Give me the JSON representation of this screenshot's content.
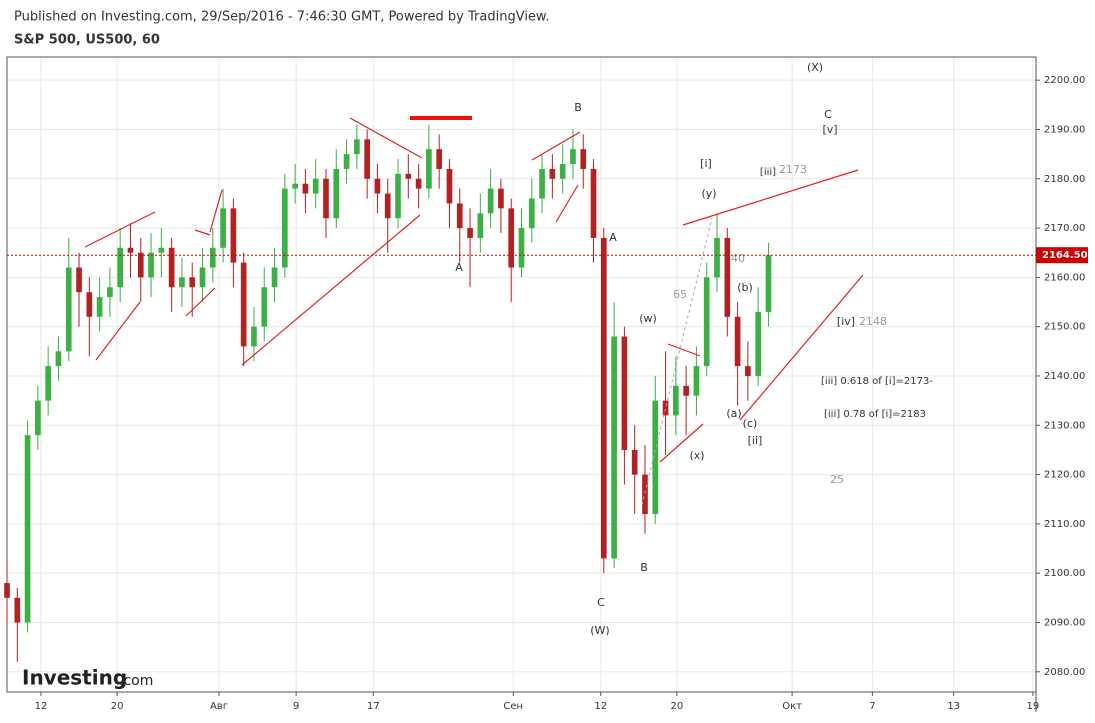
{
  "header": {
    "published": "Published on Investing.com, 29/Sep/2016 - 7:46:30 GMT, Powered by TradingView.",
    "symbol": "S&P 500, US500, 60"
  },
  "logo": {
    "brand": "Investing",
    "suffix": ".com"
  },
  "chart_data": {
    "type": "candlestick",
    "x": [
      0,
      1,
      2,
      3,
      4,
      5,
      6,
      7,
      8,
      9,
      10,
      11,
      12,
      13,
      14,
      15,
      16,
      17,
      18,
      19,
      20,
      21,
      22,
      23,
      24,
      25,
      26,
      27,
      28,
      29,
      30,
      31,
      32,
      33,
      34,
      35,
      36,
      37,
      38,
      39,
      40,
      41,
      42,
      43,
      44,
      45,
      46,
      47,
      48,
      49,
      50,
      51,
      52,
      53,
      54,
      55,
      56,
      57,
      58,
      59,
      60,
      61,
      62,
      63,
      64,
      65,
      66,
      67,
      68,
      69,
      70,
      71,
      72,
      73,
      74
    ],
    "open": [
      2098,
      2095,
      2090,
      2128,
      2135,
      2142,
      2145,
      2162,
      2157,
      2152,
      2156,
      2158,
      2166,
      2165,
      2160,
      2165,
      2166,
      2158,
      2160,
      2158,
      2162,
      2166,
      2174,
      2163,
      2146,
      2150,
      2158,
      2162,
      2178,
      2179,
      2177,
      2180,
      2172,
      2182,
      2185,
      2188,
      2180,
      2177,
      2172,
      2181,
      2180,
      2178,
      2186,
      2182,
      2175,
      2170,
      2168,
      2173,
      2178,
      2174,
      2162,
      2170,
      2176,
      2182,
      2180,
      2183,
      2186,
      2182,
      2168,
      2103,
      2148,
      2125,
      2120,
      2112,
      2135,
      2132,
      2138,
      2136,
      2142,
      2160,
      2168,
      2152,
      2142,
      2140,
      2153
    ],
    "high": [
      2102,
      2097,
      2131,
      2138,
      2146,
      2148,
      2168,
      2165,
      2160,
      2160,
      2162,
      2170,
      2171,
      2168,
      2169,
      2170,
      2168,
      2164,
      2163,
      2166,
      2170,
      2178,
      2176,
      2165,
      2154,
      2162,
      2166,
      2181,
      2183,
      2182,
      2184,
      2182,
      2186,
      2188,
      2191,
      2190,
      2183,
      2180,
      2184,
      2185,
      2183,
      2191,
      2189,
      2184,
      2178,
      2174,
      2177,
      2182,
      2180,
      2176,
      2174,
      2180,
      2185,
      2185,
      2187,
      2190,
      2189,
      2184,
      2170,
      2155,
      2150,
      2130,
      2126,
      2140,
      2145,
      2144,
      2142,
      2146,
      2163,
      2173,
      2170,
      2155,
      2147,
      2158,
      2167
    ],
    "low": [
      2090,
      2082,
      2088,
      2125,
      2132,
      2139,
      2143,
      2150,
      2144,
      2149,
      2152,
      2155,
      2160,
      2155,
      2156,
      2160,
      2153,
      2154,
      2152,
      2155,
      2159,
      2163,
      2158,
      2142,
      2143,
      2147,
      2155,
      2160,
      2175,
      2173,
      2174,
      2168,
      2170,
      2179,
      2182,
      2176,
      2173,
      2165,
      2170,
      2176,
      2174,
      2176,
      2178,
      2170,
      2163,
      2158,
      2165,
      2170,
      2169,
      2155,
      2160,
      2167,
      2173,
      2176,
      2177,
      2180,
      2178,
      2163,
      2100,
      2101,
      2118,
      2112,
      2108,
      2110,
      2124,
      2128,
      2128,
      2132,
      2140,
      2157,
      2148,
      2134,
      2135,
      2138,
      2150
    ],
    "close": [
      2095,
      2090,
      2128,
      2135,
      2142,
      2145,
      2162,
      2157,
      2152,
      2156,
      2158,
      2166,
      2165,
      2160,
      2165,
      2166,
      2158,
      2160,
      2158,
      2162,
      2166,
      2174,
      2163,
      2146,
      2150,
      2158,
      2162,
      2178,
      2179,
      2177,
      2180,
      2172,
      2182,
      2185,
      2188,
      2180,
      2177,
      2172,
      2181,
      2180,
      2178,
      2186,
      2182,
      2175,
      2170,
      2168,
      2173,
      2178,
      2174,
      2162,
      2170,
      2176,
      2182,
      2180,
      2183,
      2186,
      2182,
      2168,
      2103,
      2148,
      2125,
      2120,
      2112,
      2135,
      2132,
      2138,
      2136,
      2142,
      2160,
      2168,
      2152,
      2142,
      2140,
      2153,
      2164.5
    ],
    "up_color": "#3cb043",
    "down_color": "#b22222",
    "xlim": [
      0,
      100
    ],
    "ylim": [
      2075.9,
      2204.7
    ],
    "xticks": [
      {
        "value": 3.3,
        "label": "12"
      },
      {
        "value": 10.7,
        "label": "20"
      },
      {
        "value": 20.6,
        "label": "Авг"
      },
      {
        "value": 28.1,
        "label": "9"
      },
      {
        "value": 35.6,
        "label": "17"
      },
      {
        "value": 49.2,
        "label": "Сен"
      },
      {
        "value": 57.7,
        "label": "12"
      },
      {
        "value": 65.1,
        "label": "20"
      },
      {
        "value": 76.3,
        "label": "Окт"
      },
      {
        "value": 84.1,
        "label": "7"
      },
      {
        "value": 92.0,
        "label": "13"
      },
      {
        "value": 99.7,
        "label": "19"
      }
    ],
    "yticks": [
      {
        "value": 2080,
        "label": "2080.00"
      },
      {
        "value": 2090,
        "label": "2090.00"
      },
      {
        "value": 2100,
        "label": "2100.00"
      },
      {
        "value": 2110,
        "label": "2110.00"
      },
      {
        "value": 2120,
        "label": "2120.00"
      },
      {
        "value": 2130,
        "label": "2130.00"
      },
      {
        "value": 2140,
        "label": "2140.00"
      },
      {
        "value": 2150,
        "label": "2150.00"
      },
      {
        "value": 2160,
        "label": "2160.00"
      },
      {
        "value": 2170,
        "label": "2170.00"
      },
      {
        "value": 2180,
        "label": "2180.00"
      },
      {
        "value": 2190,
        "label": "2190.00"
      },
      {
        "value": 2200,
        "label": "2200.00"
      }
    ],
    "grid": true,
    "last_price": {
      "value": 2164.5,
      "label": "2164.50"
    },
    "annotations": [
      "(X)",
      "C",
      "[v]",
      "B",
      "[i]",
      "[iii]",
      "2173",
      "(y)",
      "A",
      "A",
      "40",
      "65",
      "(b)",
      "(w)",
      "[iv]",
      "2148",
      "[iii]  0.618 of [i]=2173-",
      "[iii]  0.78 of [i]=2183",
      "(a)",
      "(c)",
      "[ii]",
      "(x)",
      "25",
      "B",
      "C",
      "(W)"
    ]
  }
}
